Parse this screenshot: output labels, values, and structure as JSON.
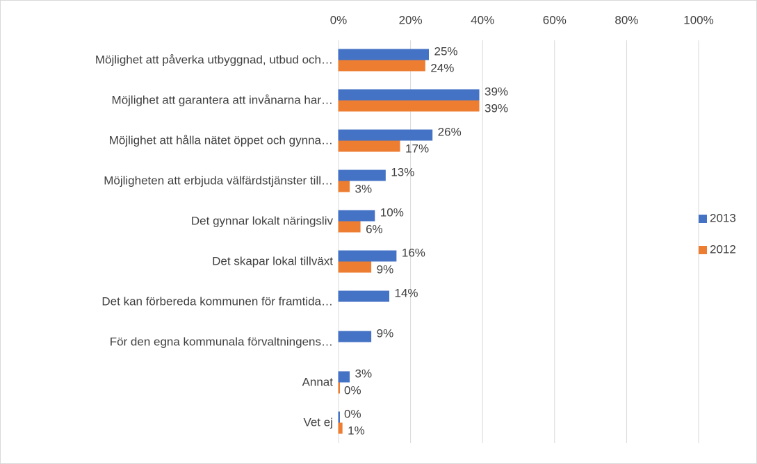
{
  "chart_data": {
    "type": "bar",
    "orientation": "horizontal",
    "categories": [
      "Möjlighet att påverka utbyggnad, utbud och…",
      "Möjlighet att garantera att invånarna har…",
      "Möjlighet att hålla nätet öppet och gynna…",
      "Möjligheten att erbjuda välfärdstjänster till…",
      "Det gynnar lokalt näringsliv",
      "Det skapar lokal tillväxt",
      "Det kan förbereda kommunen för framtida…",
      "För den egna kommunala förvaltningens…",
      "Annat",
      "Vet ej"
    ],
    "series": [
      {
        "name": "2013",
        "color": "#4472c4",
        "values": [
          25,
          39,
          26,
          13,
          10,
          16,
          14,
          9,
          3,
          0
        ],
        "value_labels": [
          "25%",
          "39%",
          "26%",
          "13%",
          "10%",
          "16%",
          "14%",
          "9%",
          "3%",
          "0%"
        ]
      },
      {
        "name": "2012",
        "color": "#ed7d31",
        "values": [
          24,
          39,
          17,
          3,
          6,
          9,
          null,
          null,
          0,
          1
        ],
        "value_labels": [
          "24%",
          "39%",
          "17%",
          "3%",
          "6%",
          "9%",
          null,
          null,
          "0%",
          "1%"
        ]
      }
    ],
    "xlim": [
      0,
      100
    ],
    "xticks": [
      {
        "value": 0,
        "label": "0%"
      },
      {
        "value": 20,
        "label": "20%"
      },
      {
        "value": 40,
        "label": "40%"
      },
      {
        "value": 60,
        "label": "60%"
      },
      {
        "value": 80,
        "label": "80%"
      },
      {
        "value": 100,
        "label": "100%"
      }
    ],
    "grid": true,
    "legend": "right"
  }
}
